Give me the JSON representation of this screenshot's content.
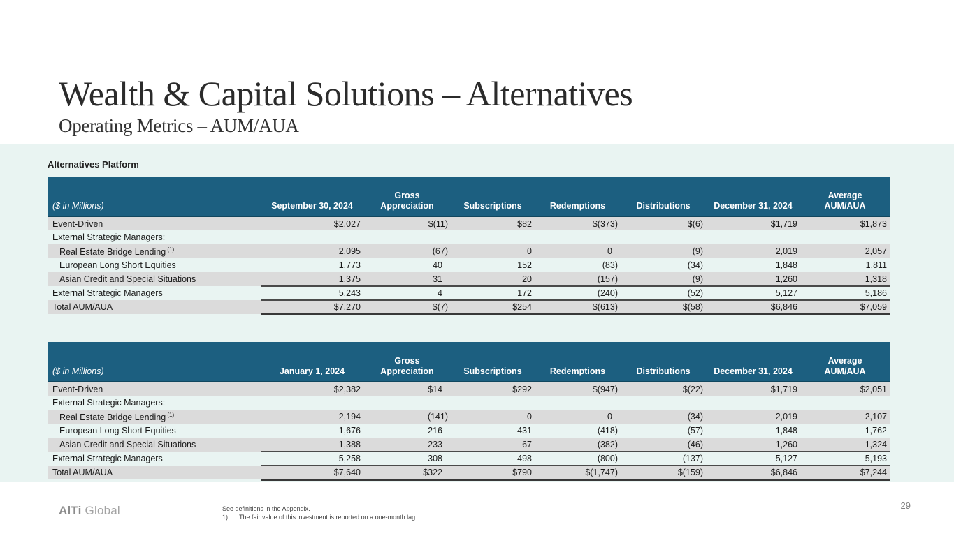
{
  "slide": {
    "title": "Wealth & Capital Solutions – Alternatives",
    "subtitle": "Operating Metrics – AUM/AUA",
    "section_label": "Alternatives Platform",
    "page_number": "29",
    "logo": {
      "bold": "AlTi",
      "light": "Global"
    },
    "footnote_1": "See definitions in the Appendix.",
    "footnote_2_marker": "1)",
    "footnote_2_text": "The fair value of this investment is reported on a one-month lag."
  },
  "colors": {
    "header_teal": "#1C5F80",
    "header_teal_dark": "#11475F",
    "band_mint": "#E9F4F2",
    "stripe_gray": "#DBDBDB"
  },
  "tables": [
    {
      "unit_label": "($ in Millions)",
      "columns": [
        "September 30, 2024",
        "Gross\nAppreciation",
        "Subscriptions",
        "Redemptions",
        "Distributions",
        "December 31, 2024",
        "Average\nAUM/AUA"
      ],
      "rows": [
        {
          "label": "Event-Driven",
          "cells": [
            "$2,027",
            "$(11)",
            "$82",
            "$(373)",
            "$(6)",
            "$1,719",
            "$1,873"
          ]
        },
        {
          "label": "External Strategic Managers:",
          "cells": [
            "",
            "",
            "",
            "",
            "",
            "",
            ""
          ]
        },
        {
          "label": "Real Estate Bridge Lending",
          "sup": "(1)",
          "indent": true,
          "cells": [
            "2,095",
            "(67)",
            "0",
            "0",
            "(9)",
            "2,019",
            "2,057"
          ]
        },
        {
          "label": "European Long Short Equities",
          "indent": true,
          "cells": [
            "1,773",
            "40",
            "152",
            "(83)",
            "(34)",
            "1,848",
            "1,811"
          ]
        },
        {
          "label": "Asian Credit and Special Situations",
          "indent": true,
          "rule": "single",
          "cells": [
            "1,375",
            "31",
            "20",
            "(157)",
            "(9)",
            "1,260",
            "1,318"
          ]
        },
        {
          "label": "External Strategic Managers",
          "rule": "single",
          "cells": [
            "5,243",
            "4",
            "172",
            "(240)",
            "(52)",
            "5,127",
            "5,186"
          ]
        },
        {
          "label": "Total AUM/AUA",
          "rule": "thick",
          "cells": [
            "$7,270",
            "$(7)",
            "$254",
            "$(613)",
            "$(58)",
            "$6,846",
            "$7,059"
          ]
        }
      ]
    },
    {
      "unit_label": "($ in Millions)",
      "columns": [
        "January 1, 2024",
        "Gross\nAppreciation",
        "Subscriptions",
        "Redemptions",
        "Distributions",
        "December 31, 2024",
        "Average\nAUM/AUA"
      ],
      "rows": [
        {
          "label": "Event-Driven",
          "cells": [
            "$2,382",
            "$14",
            "$292",
            "$(947)",
            "$(22)",
            "$1,719",
            "$2,051"
          ]
        },
        {
          "label": "External Strategic Managers:",
          "cells": [
            "",
            "",
            "",
            "",
            "",
            "",
            ""
          ]
        },
        {
          "label": "Real Estate Bridge Lending",
          "sup": "(1)",
          "indent": true,
          "cells": [
            "2,194",
            "(141)",
            "0",
            "0",
            "(34)",
            "2,019",
            "2,107"
          ]
        },
        {
          "label": "European Long Short Equities",
          "indent": true,
          "cells": [
            "1,676",
            "216",
            "431",
            "(418)",
            "(57)",
            "1,848",
            "1,762"
          ]
        },
        {
          "label": "Asian Credit and Special Situations",
          "indent": true,
          "rule": "single",
          "cells": [
            "1,388",
            "233",
            "67",
            "(382)",
            "(46)",
            "1,260",
            "1,324"
          ]
        },
        {
          "label": "External Strategic Managers",
          "rule": "single",
          "cells": [
            "5,258",
            "308",
            "498",
            "(800)",
            "(137)",
            "5,127",
            "5,193"
          ]
        },
        {
          "label": "Total AUM/AUA",
          "rule": "thick",
          "cells": [
            "$7,640",
            "$322",
            "$790",
            "$(1,747)",
            "$(159)",
            "$6,846",
            "$7,244"
          ]
        }
      ]
    }
  ]
}
